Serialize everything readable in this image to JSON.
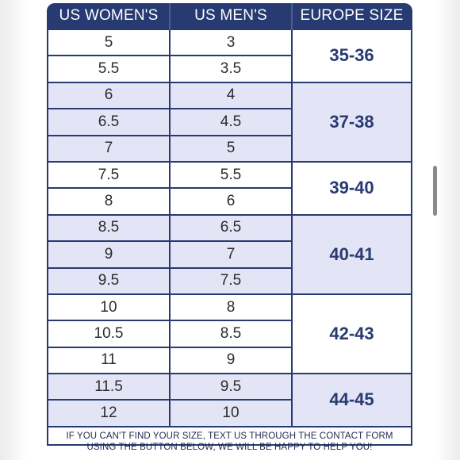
{
  "header": {
    "col_women": "US WOMEN'S",
    "col_men": "US MEN'S",
    "col_europe": "EUROPE SIZE"
  },
  "groups": [
    {
      "europe": "35-36",
      "shaded": false,
      "rows": [
        {
          "women": "5",
          "men": "3"
        },
        {
          "women": "5.5",
          "men": "3.5"
        }
      ]
    },
    {
      "europe": "37-38",
      "shaded": true,
      "rows": [
        {
          "women": "6",
          "men": "4"
        },
        {
          "women": "6.5",
          "men": "4.5"
        },
        {
          "women": "7",
          "men": "5"
        }
      ]
    },
    {
      "europe": "39-40",
      "shaded": false,
      "rows": [
        {
          "women": "7.5",
          "men": "5.5"
        },
        {
          "women": "8",
          "men": "6"
        }
      ]
    },
    {
      "europe": "40-41",
      "shaded": true,
      "rows": [
        {
          "women": "8.5",
          "men": "6.5"
        },
        {
          "women": "9",
          "men": "7"
        },
        {
          "women": "9.5",
          "men": "7.5"
        }
      ]
    },
    {
      "europe": "42-43",
      "shaded": false,
      "rows": [
        {
          "women": "10",
          "men": "8"
        },
        {
          "women": "10.5",
          "men": "8.5"
        },
        {
          "women": "11",
          "men": "9"
        }
      ]
    },
    {
      "europe": "44-45",
      "shaded": true,
      "rows": [
        {
          "women": "11.5",
          "men": "9.5"
        },
        {
          "women": "12",
          "men": "10"
        }
      ]
    }
  ],
  "footer": {
    "line1": "IF YOU CAN'T FIND YOUR SIZE, TEXT US THROUGH THE CONTACT FORM",
    "line2": "USING THE BUTTON BELOW, WE WILL BE HAPPY TO HELP YOU!"
  },
  "colors": {
    "header_bg": "#273a72",
    "shaded_row": "#e3e5f6",
    "europe_text": "#273a72"
  }
}
